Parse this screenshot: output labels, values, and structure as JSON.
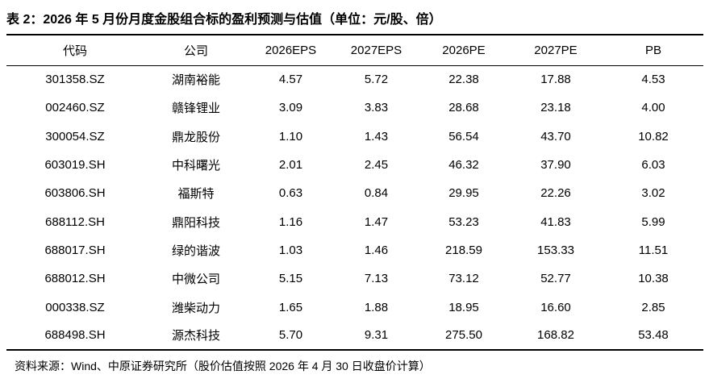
{
  "title": "表 2：2026 年 5 月份月度金股组合标的盈利预测与估值（单位：元/股、倍）",
  "table": {
    "header": [
      "代码",
      "公司",
      "2026EPS",
      "2027EPS",
      "2026PE",
      "2027PE",
      "PB"
    ],
    "rows": [
      [
        "301358.SZ",
        "湖南裕能",
        "4.57",
        "5.72",
        "22.38",
        "17.88",
        "4.53"
      ],
      [
        "002460.SZ",
        "赣锋锂业",
        "3.09",
        "3.83",
        "28.68",
        "23.18",
        "4.00"
      ],
      [
        "300054.SZ",
        "鼎龙股份",
        "1.10",
        "1.43",
        "56.54",
        "43.70",
        "10.82"
      ],
      [
        "603019.SH",
        "中科曙光",
        "2.01",
        "2.45",
        "46.32",
        "37.90",
        "6.03"
      ],
      [
        "603806.SH",
        "福斯特",
        "0.63",
        "0.84",
        "29.95",
        "22.26",
        "3.02"
      ],
      [
        "688112.SH",
        "鼎阳科技",
        "1.16",
        "1.47",
        "53.23",
        "41.83",
        "5.99"
      ],
      [
        "688017.SH",
        "绿的谐波",
        "1.03",
        "1.46",
        "218.59",
        "153.33",
        "11.51"
      ],
      [
        "688012.SH",
        "中微公司",
        "5.15",
        "7.13",
        "73.12",
        "52.77",
        "10.38"
      ],
      [
        "000338.SZ",
        "潍柴动力",
        "1.65",
        "1.88",
        "18.95",
        "16.60",
        "2.85"
      ],
      [
        "688498.SH",
        "源杰科技",
        "5.70",
        "9.31",
        "275.50",
        "168.82",
        "53.48"
      ]
    ]
  },
  "footnote": "资料来源：Wind、中原证券研究所（股价估值按照 2026 年 4 月 30 日收盘价计算）"
}
